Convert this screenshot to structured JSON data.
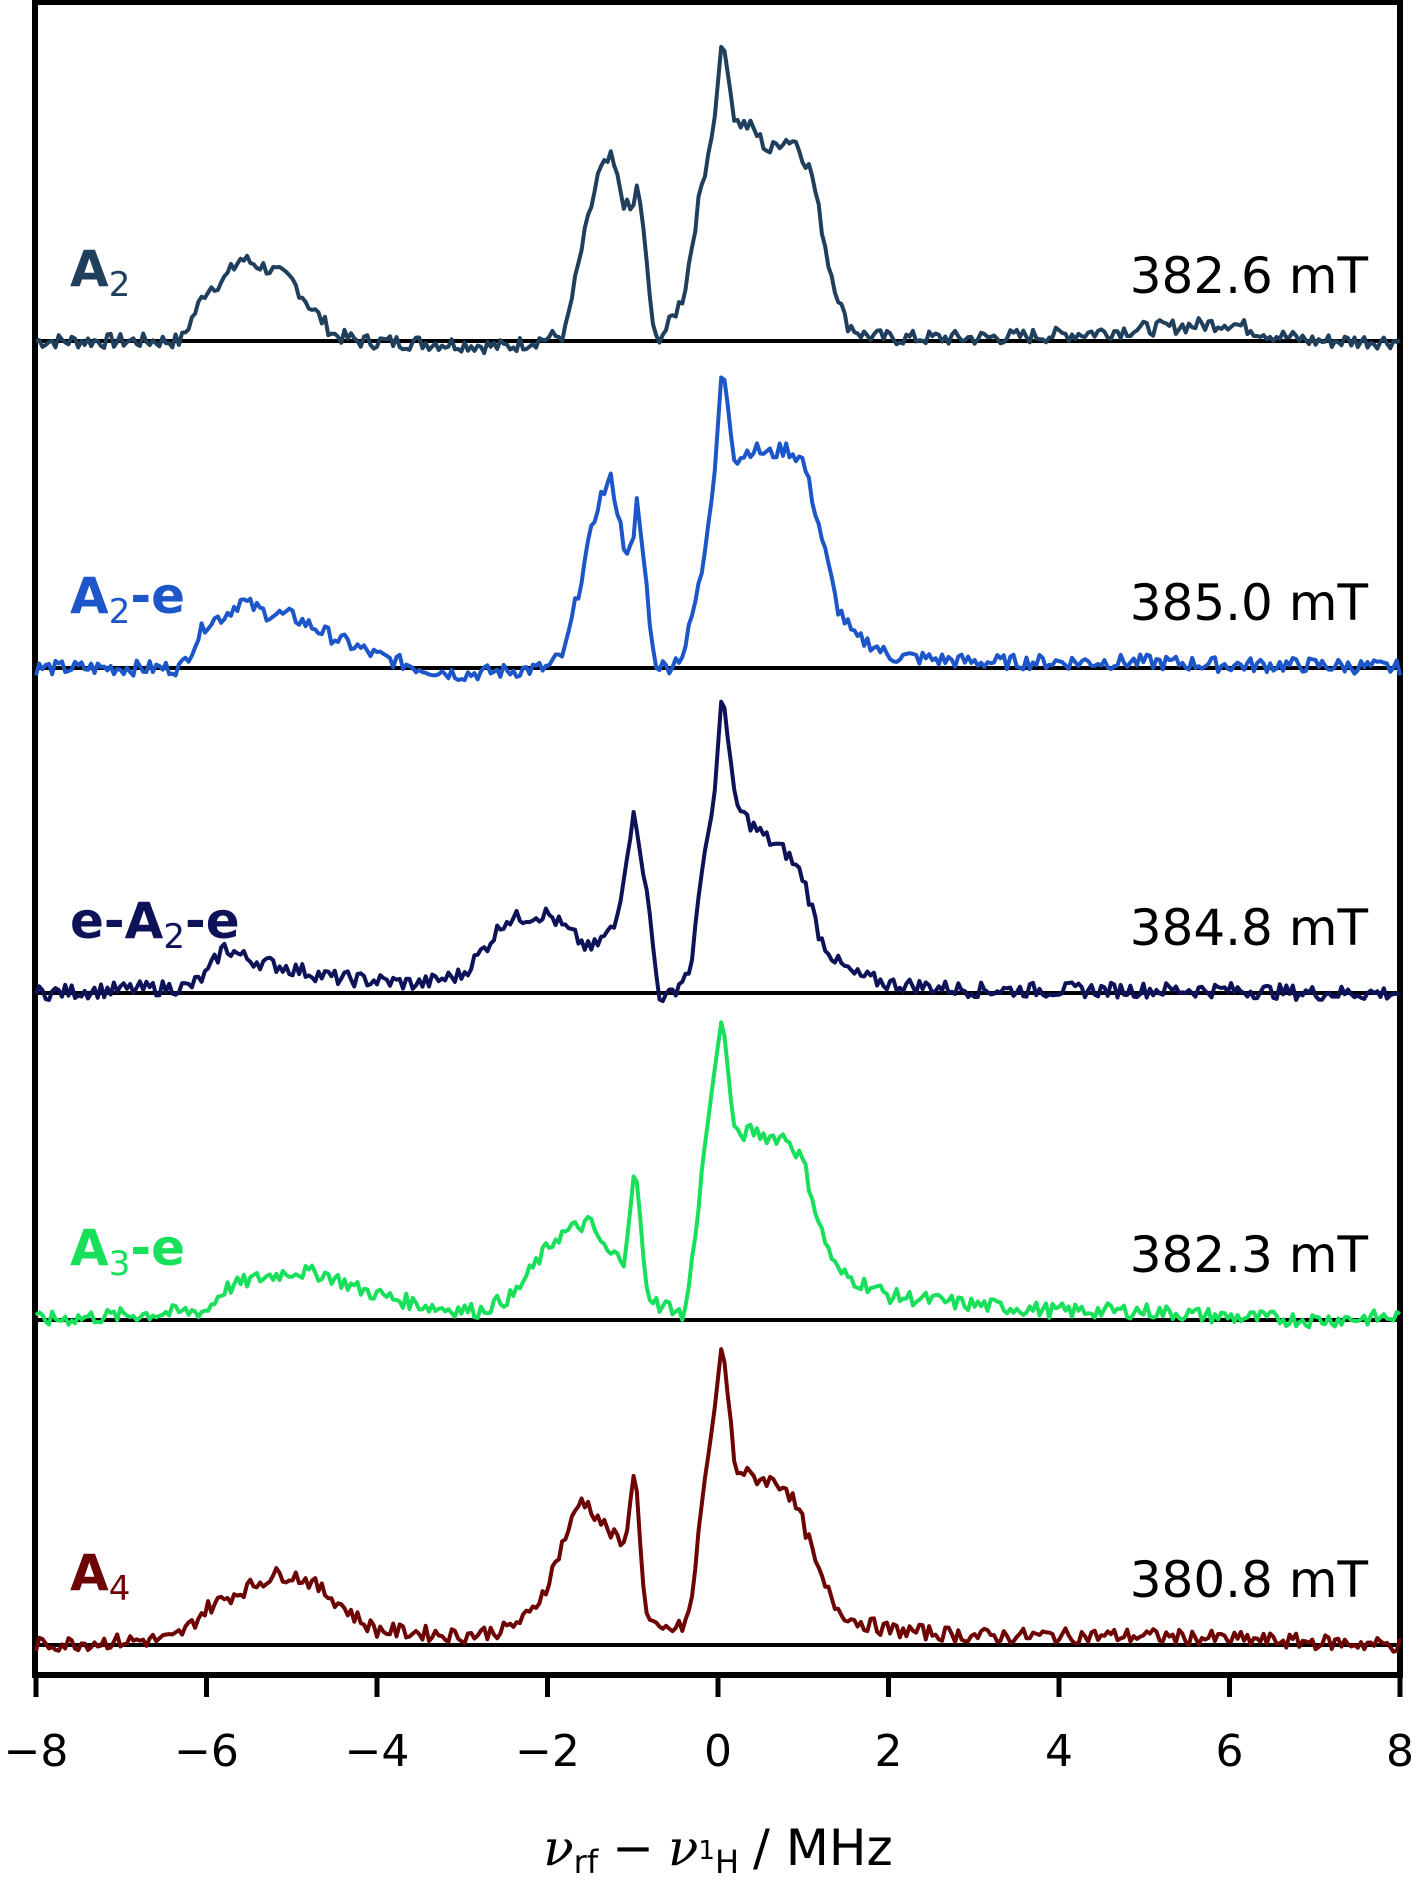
{
  "chart_data": {
    "type": "line",
    "title": "",
    "xlabel": "ν_rf − ν_1H / MHz",
    "xlabel_parts": {
      "nu": "ν",
      "rf": "rf",
      "minus": "−",
      "nu2": "ν",
      "h_sup": "1",
      "h": "H",
      "unit": "/ MHz"
    },
    "ylabel": "",
    "xlim": [
      -8,
      8
    ],
    "xticks": [
      -8,
      -6,
      -4,
      -2,
      0,
      2,
      4,
      6,
      8
    ],
    "xtick_labels": [
      "−8",
      "−6",
      "−4",
      "−2",
      "0",
      "2",
      "4",
      "6",
      "8"
    ],
    "grid": false,
    "legend": "inline labels, left of each trace",
    "stacked_offset": true,
    "series": [
      {
        "name": "A2",
        "label_main": "A",
        "label_sub": "2",
        "label_suffix": "",
        "field": "382.6 mT",
        "color": "#1f3f5c",
        "x": [
          -8,
          -6.3,
          -6.0,
          -5.8,
          -5.6,
          -5.3,
          -5.0,
          -4.8,
          -4.5,
          -4.2,
          -3.0,
          -2.5,
          -2.0,
          -1.8,
          -1.6,
          -1.4,
          -1.25,
          -1.1,
          -1.0,
          -0.95,
          -0.85,
          -0.75,
          -0.6,
          -0.4,
          -0.2,
          -0.05,
          0.05,
          0.2,
          0.4,
          0.6,
          0.75,
          0.9,
          1.1,
          1.3,
          1.5,
          1.7,
          2.0,
          3.0,
          4.0,
          5.0,
          6.0,
          6.5,
          7.0,
          8.0
        ],
        "y": [
          0,
          0,
          0.17,
          0.2,
          0.27,
          0.24,
          0.2,
          0.12,
          0.02,
          0,
          -0.01,
          -0.02,
          0.01,
          0.02,
          0.3,
          0.55,
          0.6,
          0.45,
          0.42,
          0.52,
          0.3,
          0.0,
          0.04,
          0.15,
          0.5,
          0.7,
          1.0,
          0.72,
          0.7,
          0.62,
          0.66,
          0.66,
          0.55,
          0.25,
          0.06,
          0.02,
          0.01,
          0.01,
          0.02,
          0.04,
          0.06,
          0.02,
          0.0,
          0.0
        ]
      },
      {
        "name": "A2-e",
        "label_main": "A",
        "label_sub": "2",
        "label_suffix": "-e",
        "field": "385.0 mT",
        "color": "#1c56c9",
        "x": [
          -8,
          -6.3,
          -6.0,
          -5.8,
          -5.6,
          -5.3,
          -5.0,
          -4.5,
          -4.0,
          -3.5,
          -3.0,
          -2.0,
          -1.8,
          -1.6,
          -1.4,
          -1.25,
          -1.1,
          -1.0,
          -0.95,
          -0.85,
          -0.75,
          -0.6,
          -0.4,
          -0.2,
          -0.05,
          0.05,
          0.2,
          0.4,
          0.6,
          0.8,
          1.0,
          1.2,
          1.4,
          1.6,
          1.8,
          2.0,
          3.0,
          4.0,
          5.0,
          6.0,
          7.0,
          8.0
        ],
        "y": [
          0,
          0,
          0.15,
          0.17,
          0.22,
          0.18,
          0.17,
          0.1,
          0.04,
          0.0,
          -0.02,
          0.0,
          0.05,
          0.3,
          0.55,
          0.62,
          0.4,
          0.38,
          0.55,
          0.3,
          0.02,
          0.0,
          0.05,
          0.3,
          0.6,
          1.0,
          0.68,
          0.72,
          0.7,
          0.72,
          0.68,
          0.45,
          0.2,
          0.1,
          0.08,
          0.04,
          0.02,
          0.02,
          0.02,
          0.01,
          0.01,
          0.0
        ]
      },
      {
        "name": "e-A2-e",
        "label_prefix": "e-",
        "label_main": "A",
        "label_sub": "2",
        "label_suffix": "-e",
        "field": "384.8 mT",
        "color": "#0d1259",
        "x": [
          -8,
          -6.2,
          -6.0,
          -5.8,
          -5.5,
          -5.0,
          -4.5,
          -4.0,
          -3.5,
          -3.0,
          -2.7,
          -2.5,
          -2.0,
          -1.7,
          -1.5,
          -1.2,
          -1.0,
          -0.95,
          -0.8,
          -0.7,
          -0.6,
          -0.4,
          -0.3,
          -0.2,
          -0.05,
          0.05,
          0.2,
          0.4,
          0.6,
          0.8,
          1.0,
          1.2,
          1.4,
          1.6,
          2.0,
          3.0,
          4.0,
          5.0,
          6.0,
          7.0,
          8.0
        ],
        "y": [
          0,
          0.02,
          0.06,
          0.15,
          0.11,
          0.08,
          0.05,
          0.04,
          0.03,
          0.06,
          0.16,
          0.24,
          0.26,
          0.19,
          0.14,
          0.22,
          0.58,
          0.55,
          0.25,
          0.0,
          -0.02,
          0.05,
          0.1,
          0.4,
          0.62,
          1.0,
          0.62,
          0.55,
          0.5,
          0.46,
          0.38,
          0.18,
          0.1,
          0.06,
          0.03,
          0.01,
          0.01,
          0.01,
          0.01,
          0.0,
          0.0
        ]
      },
      {
        "name": "A3-e",
        "label_main": "A",
        "label_sub": "3",
        "label_suffix": "-e",
        "field": "382.3 mT",
        "color": "#19e05a",
        "x": [
          -8,
          -6.0,
          -5.8,
          -5.5,
          -5.0,
          -4.6,
          -4.2,
          -3.8,
          -3.3,
          -2.8,
          -2.4,
          -2.1,
          -1.9,
          -1.7,
          -1.5,
          -1.3,
          -1.1,
          -1.0,
          -0.95,
          -0.85,
          -0.7,
          -0.5,
          -0.4,
          -0.3,
          -0.15,
          -0.05,
          0.05,
          0.2,
          0.4,
          0.6,
          0.8,
          1.0,
          1.2,
          1.4,
          1.6,
          1.8,
          2.0,
          3.0,
          4.0,
          5.0,
          6.0,
          7.0,
          8.0
        ],
        "y": [
          0,
          0.03,
          0.1,
          0.13,
          0.16,
          0.15,
          0.1,
          0.07,
          0.04,
          0.03,
          0.08,
          0.2,
          0.27,
          0.3,
          0.32,
          0.22,
          0.2,
          0.45,
          0.46,
          0.1,
          0.05,
          0.04,
          0.0,
          0.2,
          0.58,
          0.8,
          1.0,
          0.6,
          0.62,
          0.6,
          0.6,
          0.52,
          0.3,
          0.16,
          0.13,
          0.11,
          0.08,
          0.05,
          0.03,
          0.03,
          0.01,
          0.0,
          0.01
        ]
      },
      {
        "name": "A4",
        "label_main": "A",
        "label_sub": "4",
        "label_suffix": "",
        "field": "380.8 mT",
        "color": "#6e0505",
        "x": [
          -8,
          -6.4,
          -6.2,
          -6.0,
          -5.8,
          -5.5,
          -5.2,
          -5.0,
          -4.8,
          -4.5,
          -4.2,
          -4.0,
          -3.5,
          -3.0,
          -2.5,
          -2.2,
          -2.0,
          -1.8,
          -1.6,
          -1.5,
          -1.3,
          -1.1,
          -1.0,
          -0.95,
          -0.85,
          -0.7,
          -0.6,
          -0.4,
          -0.3,
          -0.2,
          -0.05,
          0.05,
          0.2,
          0.4,
          0.6,
          0.8,
          1.0,
          1.2,
          1.4,
          1.6,
          2.0,
          3.0,
          4.0,
          5.0,
          6.0,
          7.0,
          8.0
        ],
        "y": [
          0,
          0.02,
          0.06,
          0.12,
          0.15,
          0.19,
          0.23,
          0.23,
          0.21,
          0.15,
          0.08,
          0.05,
          0.04,
          0.03,
          0.05,
          0.1,
          0.2,
          0.35,
          0.48,
          0.45,
          0.38,
          0.32,
          0.55,
          0.5,
          0.1,
          0.04,
          0.05,
          0.06,
          0.15,
          0.45,
          0.75,
          1.0,
          0.58,
          0.55,
          0.54,
          0.52,
          0.4,
          0.22,
          0.12,
          0.08,
          0.05,
          0.03,
          0.03,
          0.03,
          0.02,
          0.01,
          0.0
        ]
      }
    ]
  }
}
